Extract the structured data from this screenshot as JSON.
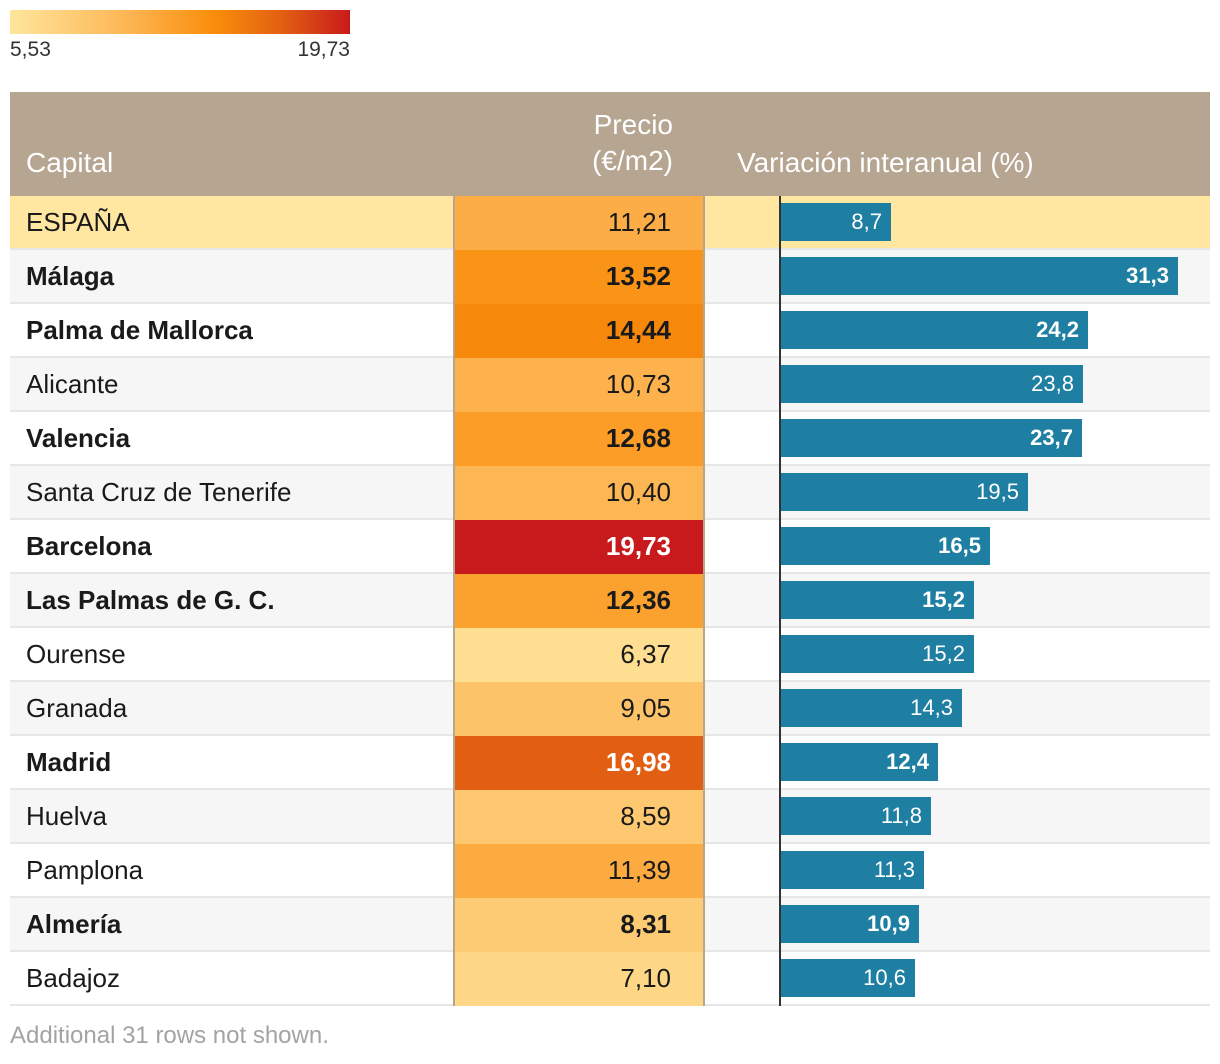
{
  "legend": {
    "min_label": "5,53",
    "max_label": "19,73",
    "min": 5.53,
    "max": 19.73
  },
  "header": {
    "capital": "Capital",
    "precio_line1": "Precio",
    "precio_line2": "(€/m2)",
    "variacion": "Variación interanual (%)"
  },
  "chart_data": {
    "type": "table",
    "columns": [
      "Capital",
      "Precio (€/m2)",
      "Variación interanual (%)"
    ],
    "bar_max": 31.3,
    "rows": [
      {
        "capital": "ESPAÑA",
        "precio": "11,21",
        "precio_value": 11.21,
        "variacion": "8,7",
        "variacion_value": 8.7,
        "bold": false,
        "highlight": true
      },
      {
        "capital": "Málaga",
        "precio": "13,52",
        "precio_value": 13.52,
        "variacion": "31,3",
        "variacion_value": 31.3,
        "bold": true
      },
      {
        "capital": "Palma de Mallorca",
        "precio": "14,44",
        "precio_value": 14.44,
        "variacion": "24,2",
        "variacion_value": 24.2,
        "bold": true
      },
      {
        "capital": "Alicante",
        "precio": "10,73",
        "precio_value": 10.73,
        "variacion": "23,8",
        "variacion_value": 23.8,
        "bold": false
      },
      {
        "capital": "Valencia",
        "precio": "12,68",
        "precio_value": 12.68,
        "variacion": "23,7",
        "variacion_value": 23.7,
        "bold": true
      },
      {
        "capital": "Santa Cruz de Tenerife",
        "precio": "10,40",
        "precio_value": 10.4,
        "variacion": "19,5",
        "variacion_value": 19.5,
        "bold": false
      },
      {
        "capital": "Barcelona",
        "precio": "19,73",
        "precio_value": 19.73,
        "variacion": "16,5",
        "variacion_value": 16.5,
        "bold": true
      },
      {
        "capital": "Las Palmas de G. C.",
        "precio": "12,36",
        "precio_value": 12.36,
        "variacion": "15,2",
        "variacion_value": 15.2,
        "bold": true
      },
      {
        "capital": "Ourense",
        "precio": "6,37",
        "precio_value": 6.37,
        "variacion": "15,2",
        "variacion_value": 15.2,
        "bold": false
      },
      {
        "capital": "Granada",
        "precio": "9,05",
        "precio_value": 9.05,
        "variacion": "14,3",
        "variacion_value": 14.3,
        "bold": false
      },
      {
        "capital": "Madrid",
        "precio": "16,98",
        "precio_value": 16.98,
        "variacion": "12,4",
        "variacion_value": 12.4,
        "bold": true
      },
      {
        "capital": "Huelva",
        "precio": "8,59",
        "precio_value": 8.59,
        "variacion": "11,8",
        "variacion_value": 11.8,
        "bold": false
      },
      {
        "capital": "Pamplona",
        "precio": "11,39",
        "precio_value": 11.39,
        "variacion": "11,3",
        "variacion_value": 11.3,
        "bold": false
      },
      {
        "capital": "Almería",
        "precio": "8,31",
        "precio_value": 8.31,
        "variacion": "10,9",
        "variacion_value": 10.9,
        "bold": true
      },
      {
        "capital": "Badajoz",
        "precio": "7,10",
        "precio_value": 7.1,
        "variacion": "10,6",
        "variacion_value": 10.6,
        "bold": false
      }
    ]
  },
  "colors": {
    "header_bg": "#b5a591",
    "bar": "#1f7fa3",
    "highlight_row": "#ffe6a1",
    "scale": [
      "#fee69d",
      "#fdb553",
      "#f98e0b",
      "#e26012",
      "#c81a1c"
    ]
  },
  "footer": "Additional 31 rows not shown."
}
